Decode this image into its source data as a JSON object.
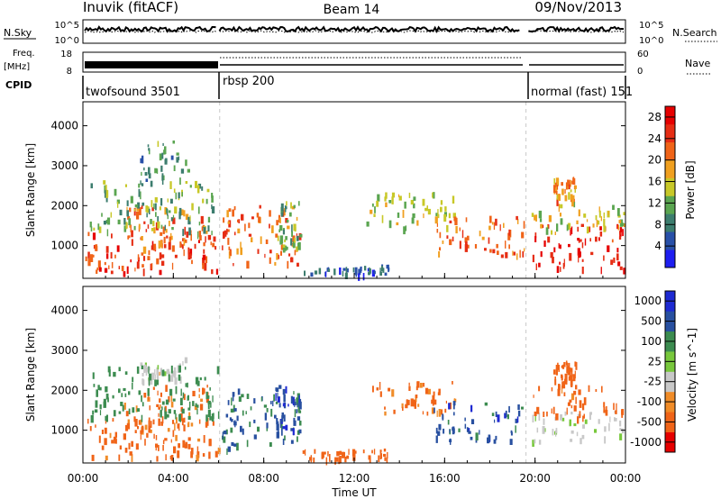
{
  "header": {
    "station": "Inuvik (fitACF)",
    "beam": "Beam 14",
    "date": "09/Nov/2013"
  },
  "summary_panels": {
    "nsky": {
      "left_label": "N.Sky",
      "right_label": "N.Search",
      "left_ticks": [
        "10^5",
        "10^0"
      ],
      "right_ticks": [
        "10^5",
        "10^0"
      ]
    },
    "freq": {
      "left_label_1": "Freq.",
      "left_label_2": "[MHz]",
      "right_label": "Nave",
      "left_ticks": [
        "18",
        "8"
      ],
      "right_ticks": [
        "60",
        "0"
      ]
    },
    "cpid": {
      "label": "CPID",
      "segments": [
        {
          "name": "twofsound 3501",
          "start_hour": 0,
          "end_hour": 6.05
        },
        {
          "name": "rbsp 200",
          "start_hour": 6.05,
          "end_hour": 19.6
        },
        {
          "name": "normal (fast) 151",
          "start_hour": 19.6,
          "end_hour": 24
        }
      ]
    }
  },
  "chart_data": [
    {
      "type": "heatmap",
      "panel": "power",
      "x_unit": "hours UT",
      "xlim": [
        0,
        24
      ],
      "ylabel": "Slant Range [km]",
      "ylim": [
        180,
        4600
      ],
      "yticks": [
        1000,
        2000,
        3000,
        4000
      ],
      "colorbar": {
        "label": "Power [dB]",
        "ticks": [
          4,
          8,
          12,
          16,
          20,
          24,
          28
        ],
        "range": [
          0,
          30
        ]
      },
      "regions": [
        {
          "x0": 0.1,
          "x1": 6.0,
          "y0": 300,
          "y1": 1300,
          "value": 24
        },
        {
          "x0": 1.8,
          "x1": 5.5,
          "y0": 900,
          "y1": 2000,
          "value": 22
        },
        {
          "x0": 0.2,
          "x1": 5.8,
          "y0": 1300,
          "y1": 2600,
          "value": 12
        },
        {
          "x0": 2.5,
          "x1": 4.8,
          "y0": 2500,
          "y1": 3600,
          "value": 10
        },
        {
          "x0": 6.1,
          "x1": 9.6,
          "y0": 500,
          "y1": 2000,
          "value": 22
        },
        {
          "x0": 8.6,
          "x1": 9.6,
          "y0": 900,
          "y1": 2100,
          "value": 12
        },
        {
          "x0": 9.6,
          "x1": 13.5,
          "y0": 250,
          "y1": 500,
          "value": 6
        },
        {
          "x0": 12.5,
          "x1": 16.5,
          "y0": 1400,
          "y1": 2300,
          "value": 14
        },
        {
          "x0": 15.5,
          "x1": 19.5,
          "y0": 700,
          "y1": 1700,
          "value": 22
        },
        {
          "x0": 19.8,
          "x1": 23.9,
          "y0": 400,
          "y1": 1500,
          "value": 27
        },
        {
          "x0": 19.8,
          "x1": 23.9,
          "y0": 1300,
          "y1": 2100,
          "value": 16
        },
        {
          "x0": 20.8,
          "x1": 21.8,
          "y0": 2100,
          "y1": 2700,
          "value": 20
        }
      ]
    },
    {
      "type": "heatmap",
      "panel": "velocity",
      "x_unit": "hours UT",
      "xlim": [
        0,
        24
      ],
      "ylabel": "Slant Range [km]",
      "ylim": [
        180,
        4600
      ],
      "yticks": [
        1000,
        2000,
        3000,
        4000
      ],
      "xticks": [
        "00:00",
        "04:00",
        "08:00",
        "12:00",
        "16:00",
        "20:00",
        "00:00"
      ],
      "xlabel": "Time UT",
      "colorbar": {
        "label": "Velocity [m s^-1]",
        "ticks": [
          1000,
          500,
          100,
          25,
          -25,
          -100,
          -500,
          -1000
        ],
        "tick_labels": [
          "1000",
          "500",
          "100",
          "25",
          "-25",
          "-100",
          "-500",
          "-1000"
        ]
      },
      "regions": [
        {
          "x0": 0.1,
          "x1": 6.0,
          "y0": 300,
          "y1": 1300,
          "value": -150
        },
        {
          "x0": 1.8,
          "x1": 5.5,
          "y0": 1000,
          "y1": 2100,
          "value": -120
        },
        {
          "x0": 2.5,
          "x1": 4.5,
          "y0": 2200,
          "y1": 2800,
          "value": 0
        },
        {
          "x0": 0.2,
          "x1": 6.0,
          "y0": 1300,
          "y1": 2600,
          "value": 300
        },
        {
          "x0": 6.1,
          "x1": 9.6,
          "y0": 500,
          "y1": 2000,
          "value": 500
        },
        {
          "x0": 8.5,
          "x1": 9.6,
          "y0": 900,
          "y1": 2100,
          "value": 900
        },
        {
          "x0": 9.6,
          "x1": 13.5,
          "y0": 250,
          "y1": 500,
          "value": -300
        },
        {
          "x0": 12.5,
          "x1": 16.5,
          "y0": 1400,
          "y1": 2300,
          "value": -150
        },
        {
          "x0": 15.5,
          "x1": 19.5,
          "y0": 700,
          "y1": 1700,
          "value": 800
        },
        {
          "x0": 19.8,
          "x1": 23.9,
          "y0": 700,
          "y1": 1500,
          "value": 10
        },
        {
          "x0": 19.8,
          "x1": 23.9,
          "y0": 1300,
          "y1": 2100,
          "value": -200
        },
        {
          "x0": 20.8,
          "x1": 21.8,
          "y0": 2100,
          "y1": 2700,
          "value": -300
        }
      ]
    }
  ],
  "colors": {
    "power_scale": [
      "#1e1ef0",
      "#2850a8",
      "#3c7d6e",
      "#5aa550",
      "#c8c828",
      "#f0a020",
      "#f06418",
      "#e62d14",
      "#e60000"
    ],
    "velocity_scale": [
      "#e60000",
      "#f06418",
      "#f08c28",
      "#c8c8c8",
      "#78c83c",
      "#3c8c50",
      "#2850a0",
      "#1e2ad2"
    ]
  }
}
